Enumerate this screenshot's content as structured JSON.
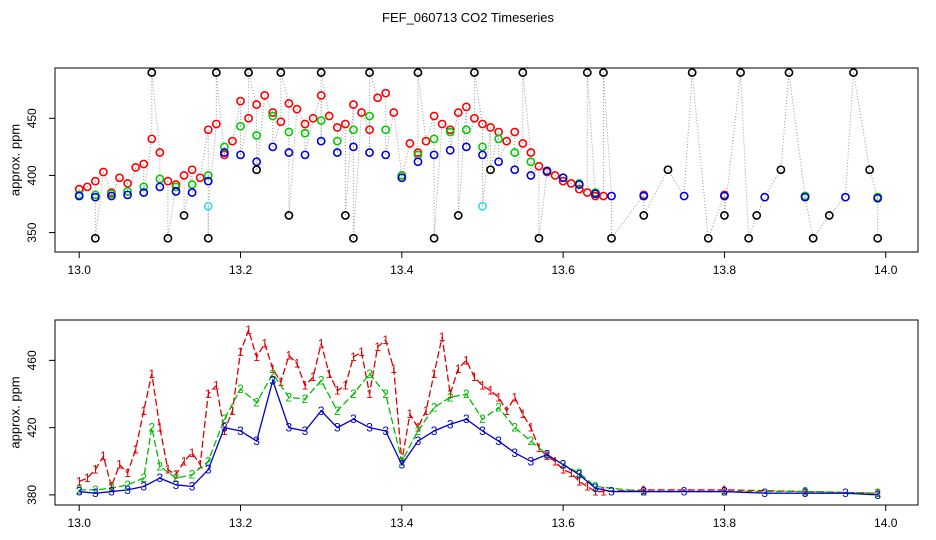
{
  "title": "FEF_060713  CO2 Timeseries",
  "chart_data": [
    {
      "type": "scatter",
      "ylabel": "approx. ppm",
      "xlim": [
        12.97,
        14.04
      ],
      "ylim": [
        333,
        494
      ],
      "xticks": [
        13.0,
        13.2,
        13.4,
        13.6,
        13.8,
        14.0
      ],
      "xtick_labels": [
        "13.0",
        "13.2",
        "13.4",
        "13.6",
        "13.8",
        "14.0"
      ],
      "yticks": [
        350,
        400,
        450
      ],
      "ytick_labels": [
        "350",
        "400",
        "450"
      ],
      "grid": false,
      "series": [
        {
          "color": "#ff0000",
          "marker": "circle",
          "x": [
            13.0,
            13.01,
            13.02,
            13.03,
            13.04,
            13.05,
            13.06,
            13.07,
            13.08,
            13.09,
            13.1,
            13.11,
            13.12,
            13.13,
            13.14,
            13.15,
            13.16,
            13.17,
            13.18,
            13.19,
            13.2,
            13.21,
            13.22,
            13.23,
            13.24,
            13.25,
            13.26,
            13.27,
            13.28,
            13.29,
            13.3,
            13.31,
            13.32,
            13.33,
            13.34,
            13.35,
            13.36,
            13.37,
            13.38,
            13.39,
            13.4,
            13.41,
            13.42,
            13.43,
            13.44,
            13.45,
            13.46,
            13.47,
            13.48,
            13.49,
            13.5,
            13.51,
            13.52,
            13.53,
            13.54,
            13.55,
            13.56,
            13.57,
            13.58,
            13.59,
            13.6,
            13.61,
            13.62,
            13.63,
            13.64,
            13.65,
            13.7,
            13.8,
            13.9,
            13.99
          ],
          "y": [
            388,
            390,
            395,
            403,
            385,
            398,
            393,
            407,
            410,
            432,
            420,
            395,
            392,
            400,
            405,
            398,
            440,
            445,
            418,
            430,
            465,
            450,
            462,
            470,
            455,
            447,
            463,
            458,
            445,
            450,
            470,
            452,
            442,
            445,
            462,
            455,
            440,
            468,
            472,
            455,
            400,
            428,
            420,
            430,
            452,
            445,
            440,
            455,
            460,
            450,
            445,
            442,
            438,
            430,
            438,
            428,
            420,
            408,
            403,
            400,
            395,
            393,
            388,
            385,
            382,
            382,
            383,
            383,
            382,
            381
          ]
        },
        {
          "color": "#00cc00",
          "marker": "circle",
          "x": [
            13.0,
            13.02,
            13.04,
            13.06,
            13.08,
            13.1,
            13.12,
            13.14,
            13.16,
            13.18,
            13.2,
            13.22,
            13.24,
            13.26,
            13.28,
            13.3,
            13.32,
            13.34,
            13.36,
            13.38,
            13.4,
            13.42,
            13.44,
            13.46,
            13.48,
            13.5,
            13.52,
            13.54,
            13.56,
            13.58,
            13.6,
            13.62,
            13.64,
            13.7,
            13.8,
            13.9,
            13.99
          ],
          "y": [
            383,
            383,
            384,
            386,
            390,
            397,
            390,
            392,
            400,
            425,
            443,
            435,
            452,
            438,
            437,
            448,
            430,
            440,
            452,
            440,
            400,
            418,
            432,
            438,
            440,
            425,
            432,
            420,
            412,
            404,
            398,
            393,
            385,
            382,
            382,
            382,
            381
          ]
        },
        {
          "color": "#0000dd",
          "marker": "circle",
          "x": [
            13.0,
            13.02,
            13.04,
            13.06,
            13.08,
            13.1,
            13.12,
            13.14,
            13.16,
            13.18,
            13.2,
            13.22,
            13.24,
            13.26,
            13.28,
            13.3,
            13.32,
            13.34,
            13.36,
            13.38,
            13.4,
            13.42,
            13.44,
            13.46,
            13.48,
            13.5,
            13.52,
            13.54,
            13.56,
            13.58,
            13.6,
            13.62,
            13.64,
            13.66,
            13.7,
            13.75,
            13.8,
            13.85,
            13.9,
            13.95,
            13.99
          ],
          "y": [
            382,
            381,
            382,
            383,
            385,
            390,
            386,
            385,
            395,
            420,
            418,
            412,
            425,
            420,
            418,
            430,
            420,
            425,
            420,
            418,
            398,
            412,
            418,
            422,
            425,
            418,
            412,
            405,
            400,
            404,
            398,
            392,
            384,
            382,
            382,
            382,
            382,
            381,
            381,
            381,
            380
          ]
        },
        {
          "color": "#000000",
          "marker": "circle",
          "x": [
            13.02,
            13.09,
            13.11,
            13.13,
            13.16,
            13.17,
            13.21,
            13.22,
            13.25,
            13.26,
            13.3,
            13.33,
            13.34,
            13.36,
            13.42,
            13.44,
            13.47,
            13.49,
            13.51,
            13.55,
            13.57,
            13.63,
            13.65,
            13.66,
            13.7,
            13.73,
            13.76,
            13.78,
            13.8,
            13.82,
            13.83,
            13.84,
            13.87,
            13.88,
            13.91,
            13.93,
            13.96,
            13.98,
            13.99
          ],
          "y": [
            345,
            490,
            345,
            365,
            345,
            490,
            490,
            405,
            490,
            365,
            490,
            365,
            345,
            490,
            490,
            345,
            365,
            490,
            405,
            490,
            345,
            490,
            490,
            345,
            365,
            405,
            490,
            345,
            365,
            490,
            345,
            365,
            405,
            490,
            345,
            365,
            490,
            405,
            345
          ]
        },
        {
          "color": "#33dddd",
          "marker": "circle",
          "x": [
            13.16,
            13.5
          ],
          "y": [
            373,
            373
          ]
        }
      ]
    },
    {
      "type": "line",
      "ylabel": "approx. ppm",
      "xlim": [
        12.97,
        14.04
      ],
      "ylim": [
        374,
        484
      ],
      "xticks": [
        13.0,
        13.2,
        13.4,
        13.6,
        13.8,
        14.0
      ],
      "xtick_labels": [
        "13.0",
        "13.2",
        "13.4",
        "13.6",
        "13.8",
        "14.0"
      ],
      "yticks": [
        380,
        420,
        460
      ],
      "ytick_labels": [
        "380",
        "420",
        "460"
      ],
      "grid": false,
      "series": [
        {
          "color": "#dd0000",
          "marker": "1",
          "x": [
            13.0,
            13.01,
            13.02,
            13.03,
            13.04,
            13.05,
            13.06,
            13.07,
            13.08,
            13.09,
            13.1,
            13.11,
            13.12,
            13.13,
            13.14,
            13.15,
            13.16,
            13.17,
            13.18,
            13.19,
            13.2,
            13.21,
            13.22,
            13.23,
            13.24,
            13.25,
            13.26,
            13.27,
            13.28,
            13.29,
            13.3,
            13.31,
            13.32,
            13.33,
            13.34,
            13.35,
            13.36,
            13.37,
            13.38,
            13.39,
            13.4,
            13.41,
            13.42,
            13.43,
            13.44,
            13.45,
            13.46,
            13.47,
            13.48,
            13.49,
            13.5,
            13.51,
            13.52,
            13.53,
            13.54,
            13.55,
            13.56,
            13.57,
            13.58,
            13.59,
            13.6,
            13.61,
            13.62,
            13.63,
            13.64,
            13.65,
            13.7,
            13.8,
            13.9,
            13.99
          ],
          "y": [
            388,
            390,
            395,
            403,
            385,
            398,
            393,
            407,
            430,
            452,
            420,
            395,
            392,
            400,
            405,
            398,
            440,
            445,
            418,
            430,
            465,
            478,
            462,
            470,
            455,
            447,
            463,
            458,
            445,
            450,
            470,
            452,
            442,
            445,
            462,
            465,
            440,
            468,
            472,
            455,
            400,
            428,
            420,
            430,
            452,
            474,
            440,
            455,
            460,
            450,
            445,
            442,
            438,
            430,
            438,
            428,
            420,
            408,
            403,
            400,
            395,
            393,
            388,
            385,
            382,
            382,
            383,
            383,
            382,
            381
          ]
        },
        {
          "color": "#00bb00",
          "marker": "2",
          "x": [
            13.0,
            13.02,
            13.04,
            13.06,
            13.08,
            13.09,
            13.1,
            13.12,
            13.14,
            13.16,
            13.18,
            13.2,
            13.22,
            13.24,
            13.26,
            13.28,
            13.3,
            13.32,
            13.34,
            13.36,
            13.38,
            13.4,
            13.42,
            13.44,
            13.46,
            13.48,
            13.5,
            13.52,
            13.54,
            13.56,
            13.58,
            13.6,
            13.62,
            13.64,
            13.7,
            13.8,
            13.9,
            13.99
          ],
          "y": [
            383,
            383,
            384,
            386,
            390,
            420,
            397,
            390,
            392,
            400,
            425,
            443,
            435,
            452,
            438,
            437,
            448,
            430,
            440,
            452,
            440,
            400,
            418,
            432,
            438,
            440,
            425,
            432,
            420,
            412,
            404,
            398,
            393,
            385,
            382,
            382,
            382,
            381
          ]
        },
        {
          "color": "#0000cc",
          "marker": "3",
          "x": [
            13.0,
            13.02,
            13.04,
            13.06,
            13.08,
            13.1,
            13.12,
            13.14,
            13.16,
            13.18,
            13.2,
            13.22,
            13.24,
            13.26,
            13.28,
            13.3,
            13.32,
            13.34,
            13.36,
            13.38,
            13.4,
            13.42,
            13.44,
            13.46,
            13.48,
            13.5,
            13.52,
            13.54,
            13.56,
            13.58,
            13.6,
            13.62,
            13.64,
            13.66,
            13.7,
            13.75,
            13.8,
            13.85,
            13.9,
            13.95,
            13.99
          ],
          "y": [
            382,
            381,
            382,
            383,
            385,
            390,
            386,
            385,
            395,
            420,
            418,
            412,
            448,
            420,
            418,
            430,
            420,
            425,
            420,
            418,
            398,
            412,
            418,
            422,
            425,
            418,
            412,
            405,
            400,
            404,
            398,
            392,
            384,
            382,
            382,
            382,
            382,
            381,
            381,
            381,
            380
          ]
        }
      ]
    }
  ]
}
